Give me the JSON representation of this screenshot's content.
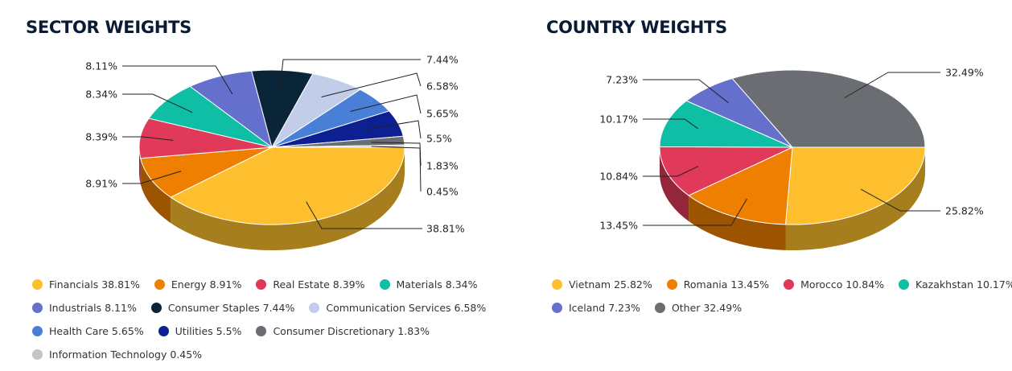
{
  "chart_data": [
    {
      "type": "pie",
      "title": "SECTOR WEIGHTS",
      "categories": [
        "Financials",
        "Energy",
        "Real Estate",
        "Materials",
        "Industrials",
        "Consumer Staples",
        "Communication Services",
        "Health Care",
        "Utilities",
        "Consumer Discretionary",
        "Information Technology"
      ],
      "values": [
        38.81,
        8.91,
        8.39,
        8.34,
        8.11,
        7.44,
        6.58,
        5.65,
        5.5,
        1.83,
        0.45
      ],
      "value_labels": [
        "38.81%",
        "8.91%",
        "8.39%",
        "8.34%",
        "8.11%",
        "7.44%",
        "6.58%",
        "5.65%",
        "5.5%",
        "1.83%",
        "0.45%"
      ],
      "legend_labels": [
        "Financials 38.81%",
        "Energy 8.91%",
        "Real Estate 8.39%",
        "Materials 8.34%",
        "Industrials 8.11%",
        "Consumer Staples 7.44%",
        "Communication Services 6.58%",
        "Health Care 5.65%",
        "Utilities 5.5%",
        "Consumer Discretionary 1.83%",
        "Information Technology 0.45%"
      ],
      "colors": [
        "#fdbf2d",
        "#ee7f00",
        "#e0395a",
        "#0fbfa5",
        "#6470cc",
        "#0a2538",
        "#c2cdea",
        "#4a7fd8",
        "#0d2092",
        "#6a6e73",
        "#c4c4c4"
      ],
      "legend_position": "bottom",
      "three_d": true
    },
    {
      "type": "pie",
      "title": "COUNTRY WEIGHTS",
      "categories": [
        "Vietnam",
        "Romania",
        "Morocco",
        "Kazakhstan",
        "Iceland",
        "Other"
      ],
      "values": [
        25.82,
        13.45,
        10.84,
        10.17,
        7.23,
        32.49
      ],
      "value_labels": [
        "25.82%",
        "13.45%",
        "10.84%",
        "10.17%",
        "7.23%",
        "32.49%"
      ],
      "legend_labels": [
        "Vietnam 25.82%",
        "Romania 13.45%",
        "Morocco 10.84%",
        "Kazakhstan 10.17%",
        "Iceland 7.23%",
        "Other 32.49%"
      ],
      "colors": [
        "#fdbf2d",
        "#ee7f00",
        "#e0395a",
        "#0fbfa5",
        "#6470cc",
        "#6a6e73"
      ],
      "legend_position": "bottom",
      "three_d": true
    }
  ]
}
